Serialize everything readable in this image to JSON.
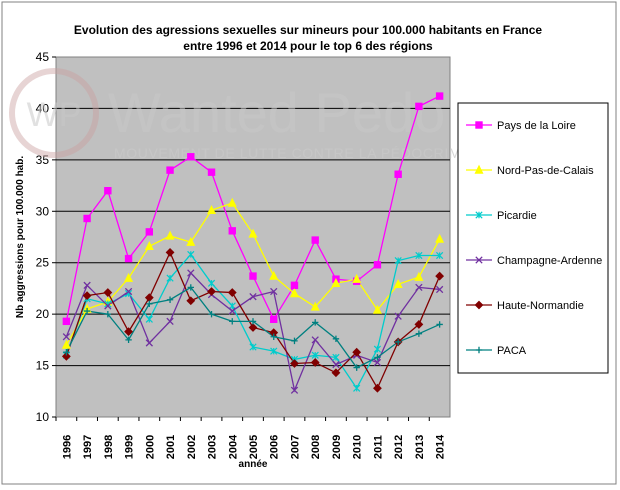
{
  "chart_data": {
    "type": "line",
    "title_line1": "Evolution des agressions sexuelles sur mineurs pour 100.000 habitants en France",
    "title_line2": "entre 1996 et 2014 pour le top 6 des régions",
    "xlabel": "année",
    "ylabel": "Nb aggressions pour 100.000 hab.",
    "ylim": [
      10,
      45
    ],
    "yticks": [
      10,
      15,
      20,
      25,
      30,
      35,
      40,
      45
    ],
    "grid": true,
    "legend_position": "right",
    "plot_background": "#c0c0c0",
    "x": [
      "1996",
      "1997",
      "1998",
      "1999",
      "2000",
      "2001",
      "2002",
      "2003",
      "2004",
      "2005",
      "2006",
      "2007",
      "2008",
      "2009",
      "2010",
      "2011",
      "2012",
      "2013",
      "2014"
    ],
    "series": [
      {
        "name": "Pays de la Loire",
        "color": "#ff00ff",
        "marker": "square",
        "values": [
          19.3,
          29.3,
          32.0,
          25.4,
          28.0,
          34.0,
          35.3,
          33.8,
          28.1,
          23.7,
          19.5,
          22.8,
          27.2,
          23.4,
          23.2,
          24.8,
          33.6,
          40.2,
          41.2
        ]
      },
      {
        "name": "Nord-Pas-de-Calais",
        "color": "#ffff00",
        "marker": "triangle",
        "values": [
          17.0,
          20.5,
          21.2,
          23.5,
          26.6,
          27.6,
          27.0,
          30.1,
          30.8,
          27.8,
          23.7,
          22.0,
          20.7,
          23.0,
          23.4,
          20.4,
          22.9,
          23.6,
          27.3
        ]
      },
      {
        "name": "Picardie",
        "color": "#00cccc",
        "marker": "star",
        "values": [
          16.0,
          21.5,
          21.0,
          22.0,
          19.5,
          23.5,
          25.8,
          23.0,
          20.8,
          16.8,
          16.4,
          15.6,
          16.0,
          15.8,
          12.8,
          16.6,
          25.2,
          25.7,
          25.7
        ]
      },
      {
        "name": "Champagne-Ardenne",
        "color": "#7030a0",
        "marker": "x",
        "values": [
          17.8,
          22.8,
          20.8,
          22.2,
          17.2,
          19.3,
          24.0,
          21.9,
          20.3,
          21.7,
          22.2,
          12.6,
          17.5,
          15.1,
          16.0,
          15.3,
          19.8,
          22.6,
          22.4
        ]
      },
      {
        "name": "Haute-Normandie",
        "color": "#800000",
        "marker": "diamond",
        "values": [
          15.9,
          21.8,
          22.1,
          18.3,
          21.6,
          26.0,
          21.3,
          22.2,
          22.1,
          18.7,
          18.2,
          15.2,
          15.3,
          14.3,
          16.3,
          12.8,
          17.3,
          19.0,
          23.7
        ]
      },
      {
        "name": "PACA",
        "color": "#008080",
        "marker": "plus",
        "values": [
          16.3,
          20.3,
          20.0,
          17.5,
          21.0,
          21.4,
          22.6,
          20.0,
          19.3,
          19.3,
          17.8,
          17.4,
          19.2,
          17.6,
          14.8,
          15.8,
          17.3,
          18.1,
          19.0
        ]
      }
    ]
  },
  "watermark": {
    "logo_text": "WP",
    "brand": "Wanted Pedo",
    "tagline": "MOUVEMENT DE LUTTE CONTRE LA PÉDOCRIMINALITÉ"
  }
}
